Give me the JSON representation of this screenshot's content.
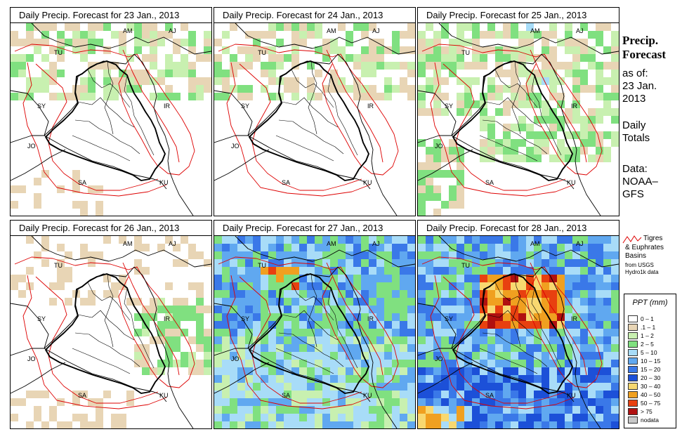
{
  "panels": [
    {
      "title": "Daily Precip. Forecast for  23 Jan., 2013"
    },
    {
      "title": "Daily Precip. Forecast for  24 Jan., 2013"
    },
    {
      "title": "Daily Precip. Forecast for  25 Jan., 2013"
    },
    {
      "title": "Daily Precip. Forecast for  26 Jan., 2013"
    },
    {
      "title": "Daily Precip. Forecast for  27 Jan., 2013"
    },
    {
      "title": "Daily Precip. Forecast for  28 Jan., 2013"
    }
  ],
  "country_labels": [
    "AM",
    "AJ",
    "TU",
    "SY",
    "IR",
    "JO",
    "SA",
    "KU"
  ],
  "sidebar": {
    "title_line1": "Precip.",
    "title_line2": "Forecast",
    "asof_line1": "as of:",
    "asof_line2": "23 Jan.",
    "asof_line3": "2013",
    "totals_line1": "Daily",
    "totals_line2": "Totals",
    "data_line1": "Data:",
    "data_line2": "NOAA–",
    "data_line3": "GFS"
  },
  "basin_legend": {
    "line1": "Tigres",
    "line2": "& Euphrates",
    "line3": "Basins",
    "line4": "from USGS",
    "line5": "Hydro1k data",
    "color": "#dd0000"
  },
  "legend": {
    "title": "PPT (mm)",
    "items": [
      {
        "label": "0 – 1",
        "color": "#ffffff"
      },
      {
        "label": ".1 – 1",
        "color": "#e8d5b5"
      },
      {
        "label": "1 – 2",
        "color": "#c8f0b0"
      },
      {
        "label": "2 – 5",
        "color": "#80e080"
      },
      {
        "label": "5 – 10",
        "color": "#a8dcf8"
      },
      {
        "label": "10 – 15",
        "color": "#60a8f0"
      },
      {
        "label": "15 – 20",
        "color": "#3a78e8"
      },
      {
        "label": "20 – 30",
        "color": "#1c50d8"
      },
      {
        "label": "30 – 40",
        "color": "#f8d870"
      },
      {
        "label": "40 – 50",
        "color": "#f0a020"
      },
      {
        "label": "50 – 75",
        "color": "#e84010"
      },
      {
        "label": "> 75",
        "color": "#b01010"
      },
      {
        "label": "nodata",
        "color": "#c8c8c8"
      }
    ]
  }
}
